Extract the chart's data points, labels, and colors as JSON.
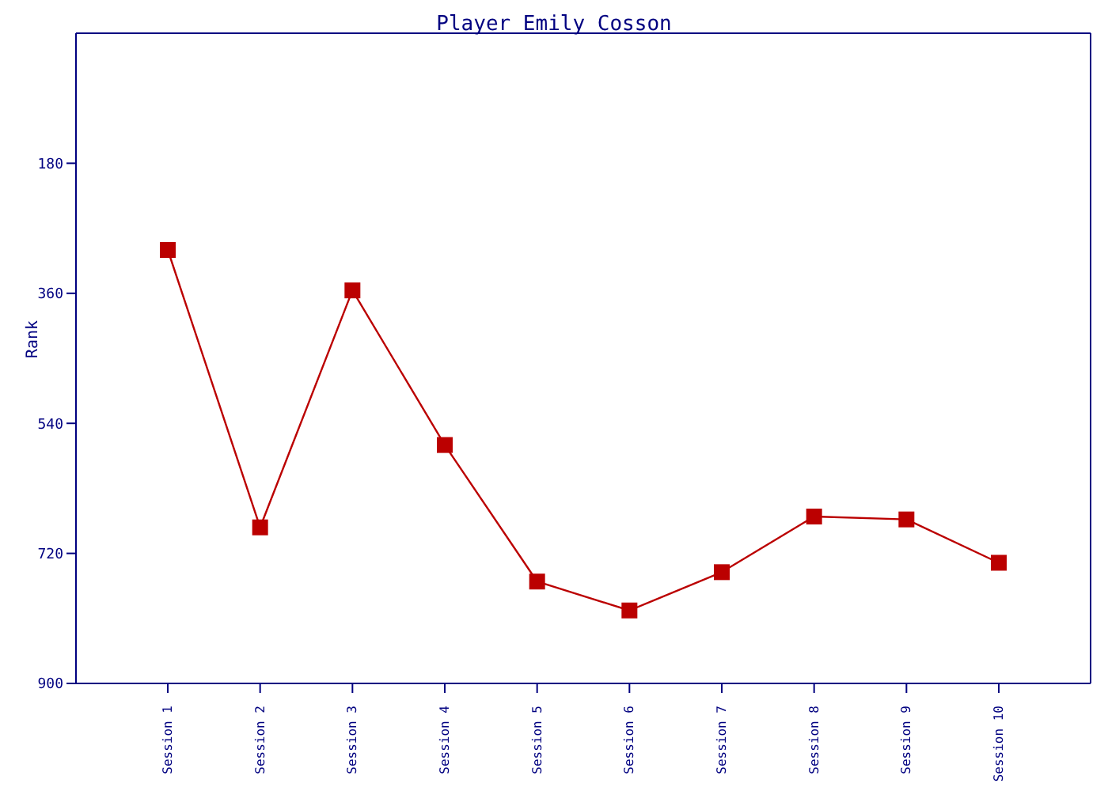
{
  "chart_data": {
    "type": "line",
    "title": "Player Emily Cosson",
    "ylabel": "Rank",
    "categories": [
      "Session 1",
      "Session 2",
      "Session 3",
      "Session 4",
      "Session 5",
      "Session 6",
      "Session 7",
      "Session 8",
      "Session 9",
      "Session 10"
    ],
    "series": [
      {
        "color": "#bb0000",
        "values": [
          300,
          684,
          356,
          570,
          759,
          799,
          746,
          669,
          673,
          733
        ]
      }
    ],
    "ylim": [
      900,
      0
    ],
    "yticks": [
      180,
      360,
      540,
      720,
      900
    ],
    "marker": "square",
    "line_style": "solid"
  }
}
